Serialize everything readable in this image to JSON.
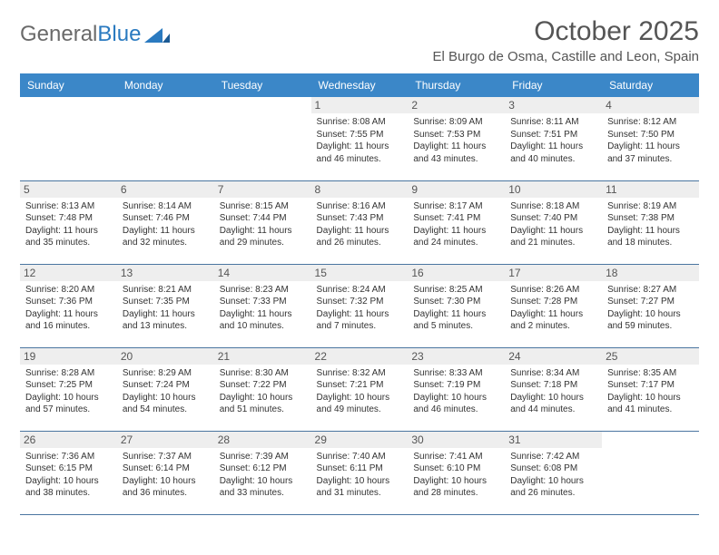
{
  "logo": {
    "text1": "General",
    "text2": "Blue"
  },
  "title": "October 2025",
  "location": "El Burgo de Osma, Castille and Leon, Spain",
  "colors": {
    "header_bg": "#3b87c8",
    "header_text": "#ffffff",
    "daynum_bg": "#eeeeee",
    "border": "#4a75a0",
    "logo_gray": "#6a6a6a",
    "logo_blue": "#2a7ac0",
    "text": "#333333",
    "title_color": "#555555"
  },
  "fonts": {
    "title_size": 30,
    "location_size": 15,
    "day_header_size": 12,
    "cell_size": 10
  },
  "day_headers": [
    "Sunday",
    "Monday",
    "Tuesday",
    "Wednesday",
    "Thursday",
    "Friday",
    "Saturday"
  ],
  "weeks": [
    [
      {
        "empty": true
      },
      {
        "empty": true
      },
      {
        "empty": true
      },
      {
        "num": "1",
        "sunrise": "Sunrise: 8:08 AM",
        "sunset": "Sunset: 7:55 PM",
        "daylight": "Daylight: 11 hours and 46 minutes."
      },
      {
        "num": "2",
        "sunrise": "Sunrise: 8:09 AM",
        "sunset": "Sunset: 7:53 PM",
        "daylight": "Daylight: 11 hours and 43 minutes."
      },
      {
        "num": "3",
        "sunrise": "Sunrise: 8:11 AM",
        "sunset": "Sunset: 7:51 PM",
        "daylight": "Daylight: 11 hours and 40 minutes."
      },
      {
        "num": "4",
        "sunrise": "Sunrise: 8:12 AM",
        "sunset": "Sunset: 7:50 PM",
        "daylight": "Daylight: 11 hours and 37 minutes."
      }
    ],
    [
      {
        "num": "5",
        "sunrise": "Sunrise: 8:13 AM",
        "sunset": "Sunset: 7:48 PM",
        "daylight": "Daylight: 11 hours and 35 minutes."
      },
      {
        "num": "6",
        "sunrise": "Sunrise: 8:14 AM",
        "sunset": "Sunset: 7:46 PM",
        "daylight": "Daylight: 11 hours and 32 minutes."
      },
      {
        "num": "7",
        "sunrise": "Sunrise: 8:15 AM",
        "sunset": "Sunset: 7:44 PM",
        "daylight": "Daylight: 11 hours and 29 minutes."
      },
      {
        "num": "8",
        "sunrise": "Sunrise: 8:16 AM",
        "sunset": "Sunset: 7:43 PM",
        "daylight": "Daylight: 11 hours and 26 minutes."
      },
      {
        "num": "9",
        "sunrise": "Sunrise: 8:17 AM",
        "sunset": "Sunset: 7:41 PM",
        "daylight": "Daylight: 11 hours and 24 minutes."
      },
      {
        "num": "10",
        "sunrise": "Sunrise: 8:18 AM",
        "sunset": "Sunset: 7:40 PM",
        "daylight": "Daylight: 11 hours and 21 minutes."
      },
      {
        "num": "11",
        "sunrise": "Sunrise: 8:19 AM",
        "sunset": "Sunset: 7:38 PM",
        "daylight": "Daylight: 11 hours and 18 minutes."
      }
    ],
    [
      {
        "num": "12",
        "sunrise": "Sunrise: 8:20 AM",
        "sunset": "Sunset: 7:36 PM",
        "daylight": "Daylight: 11 hours and 16 minutes."
      },
      {
        "num": "13",
        "sunrise": "Sunrise: 8:21 AM",
        "sunset": "Sunset: 7:35 PM",
        "daylight": "Daylight: 11 hours and 13 minutes."
      },
      {
        "num": "14",
        "sunrise": "Sunrise: 8:23 AM",
        "sunset": "Sunset: 7:33 PM",
        "daylight": "Daylight: 11 hours and 10 minutes."
      },
      {
        "num": "15",
        "sunrise": "Sunrise: 8:24 AM",
        "sunset": "Sunset: 7:32 PM",
        "daylight": "Daylight: 11 hours and 7 minutes."
      },
      {
        "num": "16",
        "sunrise": "Sunrise: 8:25 AM",
        "sunset": "Sunset: 7:30 PM",
        "daylight": "Daylight: 11 hours and 5 minutes."
      },
      {
        "num": "17",
        "sunrise": "Sunrise: 8:26 AM",
        "sunset": "Sunset: 7:28 PM",
        "daylight": "Daylight: 11 hours and 2 minutes."
      },
      {
        "num": "18",
        "sunrise": "Sunrise: 8:27 AM",
        "sunset": "Sunset: 7:27 PM",
        "daylight": "Daylight: 10 hours and 59 minutes."
      }
    ],
    [
      {
        "num": "19",
        "sunrise": "Sunrise: 8:28 AM",
        "sunset": "Sunset: 7:25 PM",
        "daylight": "Daylight: 10 hours and 57 minutes."
      },
      {
        "num": "20",
        "sunrise": "Sunrise: 8:29 AM",
        "sunset": "Sunset: 7:24 PM",
        "daylight": "Daylight: 10 hours and 54 minutes."
      },
      {
        "num": "21",
        "sunrise": "Sunrise: 8:30 AM",
        "sunset": "Sunset: 7:22 PM",
        "daylight": "Daylight: 10 hours and 51 minutes."
      },
      {
        "num": "22",
        "sunrise": "Sunrise: 8:32 AM",
        "sunset": "Sunset: 7:21 PM",
        "daylight": "Daylight: 10 hours and 49 minutes."
      },
      {
        "num": "23",
        "sunrise": "Sunrise: 8:33 AM",
        "sunset": "Sunset: 7:19 PM",
        "daylight": "Daylight: 10 hours and 46 minutes."
      },
      {
        "num": "24",
        "sunrise": "Sunrise: 8:34 AM",
        "sunset": "Sunset: 7:18 PM",
        "daylight": "Daylight: 10 hours and 44 minutes."
      },
      {
        "num": "25",
        "sunrise": "Sunrise: 8:35 AM",
        "sunset": "Sunset: 7:17 PM",
        "daylight": "Daylight: 10 hours and 41 minutes."
      }
    ],
    [
      {
        "num": "26",
        "sunrise": "Sunrise: 7:36 AM",
        "sunset": "Sunset: 6:15 PM",
        "daylight": "Daylight: 10 hours and 38 minutes."
      },
      {
        "num": "27",
        "sunrise": "Sunrise: 7:37 AM",
        "sunset": "Sunset: 6:14 PM",
        "daylight": "Daylight: 10 hours and 36 minutes."
      },
      {
        "num": "28",
        "sunrise": "Sunrise: 7:39 AM",
        "sunset": "Sunset: 6:12 PM",
        "daylight": "Daylight: 10 hours and 33 minutes."
      },
      {
        "num": "29",
        "sunrise": "Sunrise: 7:40 AM",
        "sunset": "Sunset: 6:11 PM",
        "daylight": "Daylight: 10 hours and 31 minutes."
      },
      {
        "num": "30",
        "sunrise": "Sunrise: 7:41 AM",
        "sunset": "Sunset: 6:10 PM",
        "daylight": "Daylight: 10 hours and 28 minutes."
      },
      {
        "num": "31",
        "sunrise": "Sunrise: 7:42 AM",
        "sunset": "Sunset: 6:08 PM",
        "daylight": "Daylight: 10 hours and 26 minutes."
      },
      {
        "empty": true
      }
    ]
  ]
}
